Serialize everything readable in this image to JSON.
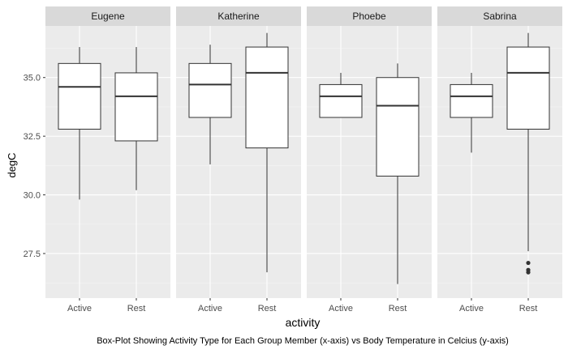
{
  "chart_data": {
    "type": "boxplot",
    "facets": [
      {
        "name": "Eugene",
        "boxes": [
          {
            "category": "Active",
            "min": 29.8,
            "q1": 32.8,
            "median": 34.6,
            "q3": 35.6,
            "max": 36.3,
            "outliers": []
          },
          {
            "category": "Rest",
            "min": 30.2,
            "q1": 32.3,
            "median": 34.2,
            "q3": 35.2,
            "max": 36.3,
            "outliers": []
          }
        ]
      },
      {
        "name": "Katherine",
        "boxes": [
          {
            "category": "Active",
            "min": 31.3,
            "q1": 33.3,
            "median": 34.7,
            "q3": 35.6,
            "max": 36.4,
            "outliers": []
          },
          {
            "category": "Rest",
            "min": 26.7,
            "q1": 32.0,
            "median": 35.2,
            "q3": 36.3,
            "max": 36.9,
            "outliers": []
          }
        ]
      },
      {
        "name": "Phoebe",
        "boxes": [
          {
            "category": "Active",
            "min": 33.3,
            "q1": 33.3,
            "median": 34.2,
            "q3": 34.7,
            "max": 35.2,
            "outliers": []
          },
          {
            "category": "Rest",
            "min": 26.2,
            "q1": 30.8,
            "median": 33.8,
            "q3": 35.0,
            "max": 35.6,
            "outliers": []
          }
        ]
      },
      {
        "name": "Sabrina",
        "boxes": [
          {
            "category": "Active",
            "min": 31.8,
            "q1": 33.3,
            "median": 34.2,
            "q3": 34.7,
            "max": 35.2,
            "outliers": []
          },
          {
            "category": "Rest",
            "min": 27.6,
            "q1": 32.8,
            "median": 35.2,
            "q3": 36.3,
            "max": 36.9,
            "outliers": [
              27.1,
              26.8,
              26.7
            ]
          }
        ]
      }
    ],
    "categories": [
      "Active",
      "Rest"
    ],
    "ylim": [
      25.6,
      37.2
    ],
    "yticks": [
      27.5,
      30.0,
      32.5,
      35.0
    ],
    "ytick_labels": [
      "27.5",
      "30.0",
      "32.5",
      "35.0"
    ],
    "xlabel": "activity",
    "ylabel": "degC",
    "caption": "Box-Plot Showing Activity Type for Each Group Member (x-axis) vs Body Temperature in Celcius (y-axis)",
    "grid": true,
    "colors": {
      "panel_bg": "#ebebeb",
      "strip_bg": "#d9d9d9",
      "grid_major": "#ffffff",
      "grid_minor": "#f5f5f5",
      "box_fill": "#ffffff",
      "box_line": "#333333",
      "text_dark": "#1a1a1a",
      "text_axis": "#4d4d4d"
    }
  }
}
